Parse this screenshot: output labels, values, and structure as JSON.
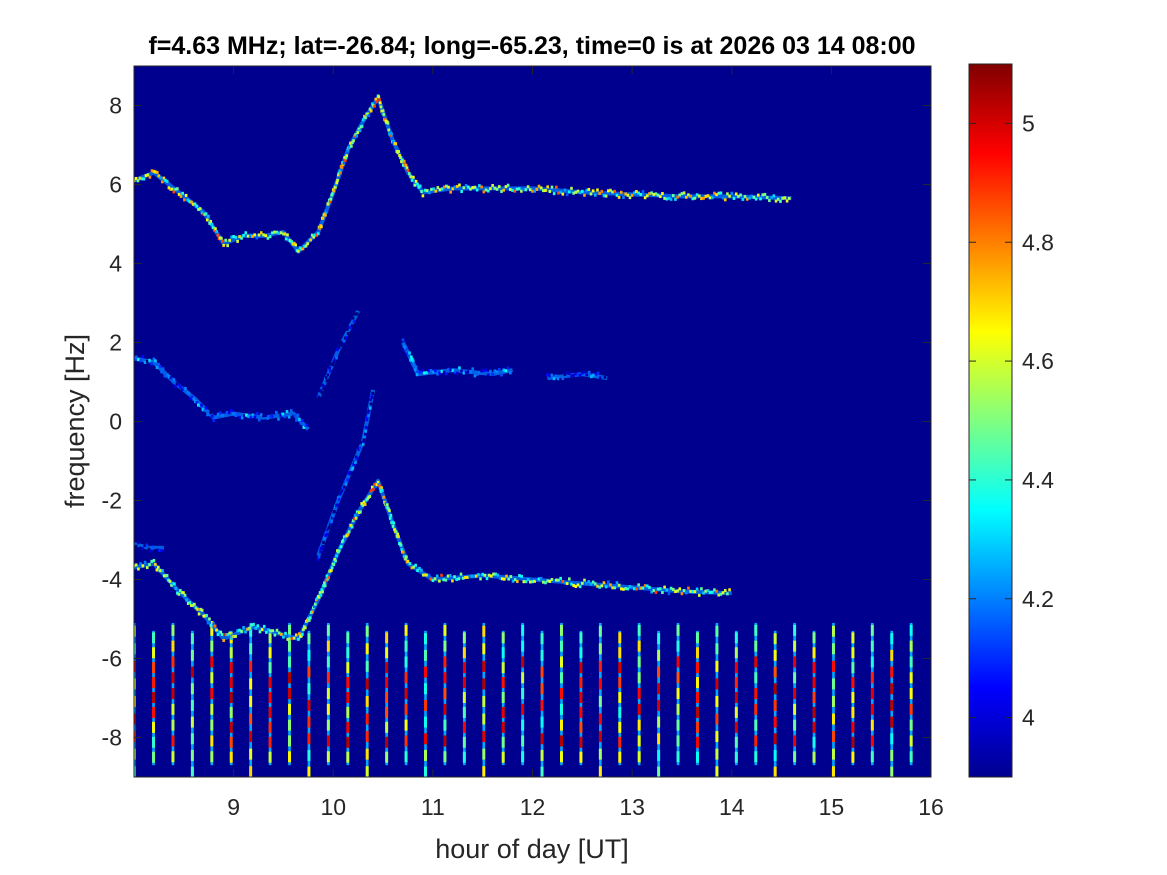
{
  "chart_data": {
    "type": "heatmap",
    "title": "f=4.63 MHz;  lat=-26.84; long=-65.23, time=0 is at 2026 03 14 08:00",
    "xlabel": "hour of day [UT]",
    "ylabel": "frequency [Hz]",
    "xlim": [
      8.0,
      16.0
    ],
    "ylim": [
      -9.0,
      9.0
    ],
    "xticks": [
      9,
      10,
      11,
      12,
      13,
      14,
      15,
      16
    ],
    "yticks": [
      -8,
      -6,
      -4,
      -2,
      0,
      2,
      4,
      6,
      8
    ],
    "colorbar": {
      "colormap": "jet",
      "clim": [
        3.9,
        5.1
      ],
      "ticks": [
        4,
        4.2,
        4.4,
        4.6,
        4.8,
        5
      ],
      "tick_labels": [
        "4",
        "4.2",
        "4.4",
        "4.6",
        "4.8",
        "5"
      ]
    },
    "background_color": "#00008f",
    "traces": [
      {
        "points": [
          [
            8.0,
            6.1
          ],
          [
            8.2,
            6.3
          ],
          [
            8.4,
            5.9
          ],
          [
            8.7,
            5.3
          ],
          [
            8.9,
            4.5
          ],
          [
            9.1,
            4.7
          ],
          [
            9.3,
            4.7
          ],
          [
            9.5,
            4.8
          ],
          [
            9.65,
            4.3
          ],
          [
            9.85,
            4.8
          ],
          [
            10.0,
            5.8
          ],
          [
            10.15,
            6.9
          ],
          [
            10.3,
            7.6
          ],
          [
            10.45,
            8.2
          ],
          [
            10.6,
            7.1
          ],
          [
            10.75,
            6.3
          ],
          [
            10.9,
            5.8
          ],
          [
            11.2,
            5.9
          ],
          [
            11.6,
            5.9
          ],
          [
            12.0,
            5.9
          ],
          [
            12.5,
            5.8
          ],
          [
            13.0,
            5.75
          ],
          [
            13.5,
            5.7
          ],
          [
            14.0,
            5.7
          ],
          [
            14.6,
            5.65
          ]
        ],
        "intensity": [
          4.9,
          4.8,
          4.7,
          4.6,
          4.5
        ]
      },
      {
        "points": [
          [
            8.0,
            1.6
          ],
          [
            8.2,
            1.5
          ],
          [
            8.4,
            1.0
          ],
          [
            8.6,
            0.6
          ],
          [
            8.8,
            0.1
          ],
          [
            9.0,
            0.2
          ],
          [
            9.3,
            0.1
          ],
          [
            9.6,
            0.2
          ],
          [
            9.75,
            -0.2
          ]
        ],
        "intensity": [
          4.4,
          4.3,
          4.2
        ]
      },
      {
        "points": [
          [
            9.85,
            0.6
          ],
          [
            10.05,
            1.8
          ],
          [
            10.25,
            2.8
          ]
        ],
        "intensity": [
          4.2,
          4.1
        ]
      },
      {
        "points": [
          [
            10.7,
            2.0
          ],
          [
            10.85,
            1.2
          ],
          [
            11.2,
            1.3
          ],
          [
            11.6,
            1.2
          ],
          [
            11.8,
            1.3
          ]
        ],
        "intensity": [
          4.4,
          4.3
        ]
      },
      {
        "points": [
          [
            12.15,
            1.1
          ],
          [
            12.5,
            1.2
          ],
          [
            12.75,
            1.1
          ]
        ],
        "intensity": [
          4.3,
          4.2
        ]
      },
      {
        "points": [
          [
            8.0,
            -3.7
          ],
          [
            8.2,
            -3.6
          ],
          [
            8.45,
            -4.3
          ],
          [
            8.7,
            -4.9
          ],
          [
            8.9,
            -5.5
          ],
          [
            9.2,
            -5.2
          ],
          [
            9.5,
            -5.4
          ],
          [
            9.65,
            -5.5
          ],
          [
            9.85,
            -4.5
          ],
          [
            10.05,
            -3.3
          ],
          [
            10.25,
            -2.3
          ],
          [
            10.45,
            -1.5
          ],
          [
            10.6,
            -2.6
          ],
          [
            10.75,
            -3.6
          ],
          [
            11.0,
            -4.0
          ],
          [
            11.5,
            -3.9
          ],
          [
            12.0,
            -4.0
          ],
          [
            12.5,
            -4.1
          ],
          [
            13.0,
            -4.2
          ],
          [
            13.5,
            -4.3
          ],
          [
            14.0,
            -4.35
          ]
        ],
        "intensity": [
          4.9,
          4.7,
          4.6,
          4.5
        ]
      },
      {
        "points": [
          [
            8.0,
            -3.1
          ],
          [
            8.15,
            -3.2
          ],
          [
            8.3,
            -3.2
          ]
        ],
        "intensity": [
          4.3,
          4.1
        ]
      },
      {
        "points": [
          [
            9.85,
            -3.4
          ],
          [
            10.05,
            -2.0
          ],
          [
            10.3,
            -0.5
          ],
          [
            10.4,
            0.8
          ]
        ],
        "intensity": [
          4.3,
          4.1
        ]
      }
    ],
    "stripes": {
      "period_hours": 0.195,
      "start_hour": 8.0,
      "end_hour": 15.9,
      "y_range": [
        -8.7,
        -5.3
      ],
      "hot_bands": [
        -6.3,
        -6.8,
        -7.4,
        -8.0
      ]
    }
  }
}
